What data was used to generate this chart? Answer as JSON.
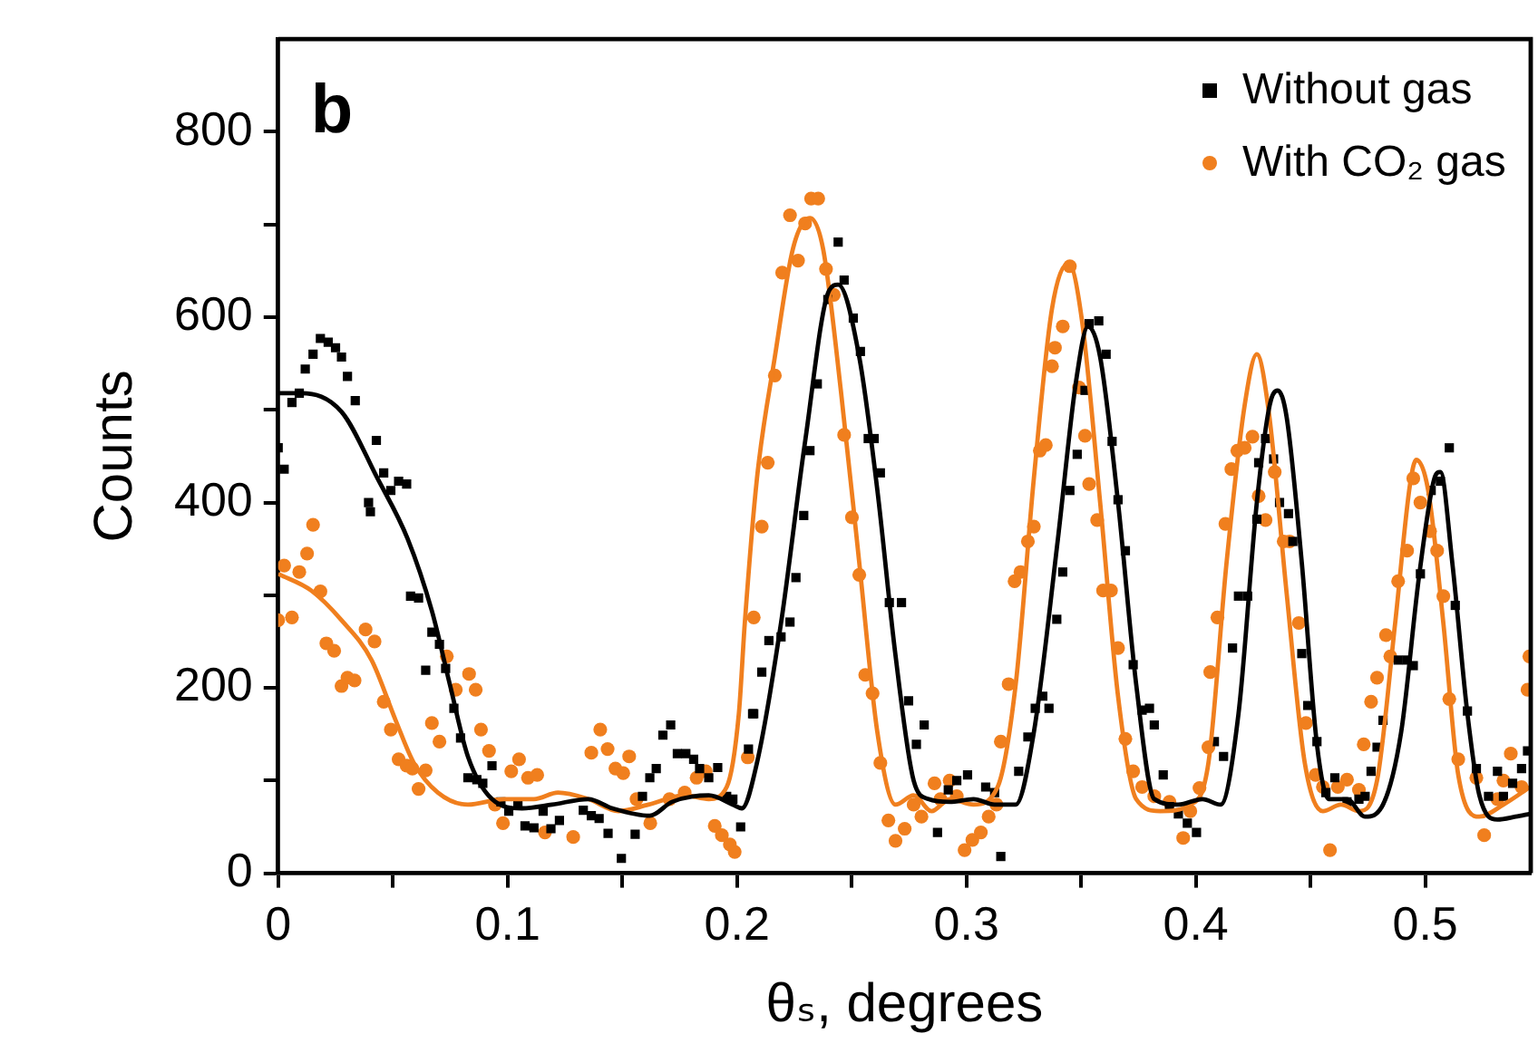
{
  "chart_data": {
    "type": "scatter",
    "xlabel": "θₛ, degrees",
    "ylabel": "Counts",
    "annotations": [
      "b"
    ],
    "xlim": [
      0,
      0.546
    ],
    "ylim": [
      0,
      900
    ],
    "xticks": [
      0,
      {
        "value": 0.05,
        "label": null
      },
      0.1,
      {
        "value": 0.15,
        "label": null
      },
      0.2,
      {
        "value": 0.25,
        "label": null
      },
      0.3,
      {
        "value": 0.35,
        "label": null
      },
      0.4,
      {
        "value": 0.45,
        "label": null
      },
      0.5
    ],
    "yticks": [
      0,
      {
        "value": 100,
        "label": null
      },
      200,
      {
        "value": 300,
        "label": null
      },
      400,
      {
        "value": 500,
        "label": null
      },
      600,
      {
        "value": 700,
        "label": null
      },
      800
    ],
    "grid": false,
    "legend": "top right",
    "line_style": "solid",
    "series": [
      {
        "name": "Without gas",
        "marker": "square",
        "color": "#000000",
        "x": [
          0,
          0.0026,
          0.006,
          0.0092,
          0.0118,
          0.0152,
          0.0184,
          0.0218,
          0.025,
          0.0276,
          0.0302,
          0.0336,
          0.0394,
          0.0402,
          0.0428,
          0.046,
          0.0491,
          0.0525,
          0.056,
          0.0577,
          0.0612,
          0.0643,
          0.067,
          0.0703,
          0.073,
          0.0766,
          0.0795,
          0.0827,
          0.0866,
          0.0892,
          0.0932,
          0.0971,
          0.1005,
          0.1045,
          0.1076,
          0.1115,
          0.1155,
          0.1189,
          0.1226,
          0.133,
          0.1365,
          0.1399,
          0.1438,
          0.1496,
          0.1556,
          0.1588,
          0.162,
          0.1648,
          0.1677,
          0.1711,
          0.174,
          0.1777,
          0.1811,
          0.1837,
          0.1877,
          0.1916,
          0.1955,
          0.1982,
          0.2016,
          0.205,
          0.2068,
          0.2073,
          0.2108,
          0.2139,
          0.2192,
          0.2231,
          0.2257,
          0.2291,
          0.2318,
          0.235,
          0.2396,
          0.2441,
          0.2467,
          0.2507,
          0.2538,
          0.2572,
          0.2598,
          0.2625,
          0.2664,
          0.2717,
          0.2748,
          0.2782,
          0.2816,
          0.2874,
          0.2921,
          0.2958,
          0.3005,
          0.3084,
          0.3123,
          0.315,
          0.3228,
          0.3268,
          0.33,
          0.3333,
          0.336,
          0.3394,
          0.342,
          0.3451,
          0.3483,
          0.3517,
          0.3535,
          0.3577,
          0.3609,
          0.3635,
          0.3661,
          0.3693,
          0.3727,
          0.3766,
          0.3798,
          0.3819,
          0.3858,
          0.3885,
          0.3924,
          0.3963,
          0.4003,
          0.4081,
          0.4121,
          0.416,
          0.4186,
          0.4226,
          0.4266,
          0.4274,
          0.4304,
          0.4339,
          0.4365,
          0.4404,
          0.4423,
          0.4462,
          0.4488,
          0.4528,
          0.4567,
          0.4606,
          0.4659,
          0.4711,
          0.4738,
          0.4764,
          0.479,
          0.4816,
          0.4882,
          0.4921,
          0.4948,
          0.4979,
          0.5026,
          0.5066,
          0.5105,
          0.5131,
          0.5184,
          0.5223,
          0.5276,
          0.5315,
          0.5341,
          0.5381,
          0.542,
          0.5446
        ],
        "values": [
          459,
          436,
          508,
          518,
          544,
          560,
          577,
          573,
          567,
          557,
          536,
          510,
          400,
          390,
          467,
          432,
          413,
          423,
          420,
          299,
          297,
          219,
          260,
          247,
          221,
          178,
          146,
          103,
          101,
          97,
          116,
          77,
          67,
          74,
          51,
          49,
          67,
          48,
          57,
          68,
          62,
          59,
          43,
          16,
          42,
          83,
          103,
          113,
          149,
          160,
          129,
          129,
          123,
          113,
          103,
          114,
          83,
          80,
          50,
          134,
          172,
          172,
          217,
          251,
          255,
          271,
          319,
          386,
          456,
          528,
          619,
          681,
          640,
          599,
          563,
          469,
          469,
          432,
          292,
          292,
          186,
          139,
          160,
          44,
          90,
          100,
          106,
          93,
          87,
          18,
          110,
          147,
          178,
          191,
          178,
          274,
          325,
          413,
          452,
          521,
          593,
          596,
          560,
          466,
          403,
          348,
          225,
          176,
          178,
          160,
          106,
          72,
          64,
          54,
          44,
          142,
          126,
          243,
          299,
          299,
          382,
          443,
          469,
          447,
          400,
          388,
          358,
          237,
          181,
          142,
          87,
          103,
          77,
          80,
          83,
          110,
          136,
          165,
          230,
          230,
          224,
          323,
          413,
          423,
          459,
          289,
          175,
          113,
          83,
          110,
          83,
          97,
          113,
          132
        ]
      },
      {
        "name": "With CO₂ gas",
        "marker": "circle",
        "color": "#f07f1e",
        "x": [
          0,
          0.0026,
          0.006,
          0.0092,
          0.0126,
          0.0152,
          0.0184,
          0.021,
          0.0244,
          0.0276,
          0.0302,
          0.0333,
          0.0381,
          0.042,
          0.046,
          0.0491,
          0.0525,
          0.056,
          0.0585,
          0.0612,
          0.0643,
          0.067,
          0.0703,
          0.0735,
          0.0774,
          0.0832,
          0.0861,
          0.0884,
          0.0919,
          0.0945,
          0.098,
          0.1016,
          0.105,
          0.1089,
          0.1129,
          0.1163,
          0.1286,
          0.1365,
          0.1404,
          0.1436,
          0.147,
          0.1504,
          0.153,
          0.1562,
          0.1622,
          0.1706,
          0.1772,
          0.1824,
          0.1864,
          0.1903,
          0.1934,
          0.1969,
          0.199,
          0.2047,
          0.2073,
          0.2108,
          0.2134,
          0.2165,
          0.2197,
          0.2231,
          0.2266,
          0.2297,
          0.2323,
          0.2354,
          0.2388,
          0.2422,
          0.2467,
          0.2501,
          0.2533,
          0.2559,
          0.2591,
          0.2625,
          0.266,
          0.2691,
          0.2731,
          0.277,
          0.2804,
          0.2861,
          0.2887,
          0.2927,
          0.2958,
          0.2992,
          0.3026,
          0.3063,
          0.3097,
          0.3131,
          0.315,
          0.3184,
          0.321,
          0.3236,
          0.3268,
          0.3294,
          0.332,
          0.3346,
          0.3373,
          0.3386,
          0.342,
          0.3451,
          0.3491,
          0.3517,
          0.3535,
          0.357,
          0.3596,
          0.363,
          0.3661,
          0.3693,
          0.3727,
          0.3766,
          0.3819,
          0.3885,
          0.3945,
          0.3976,
          0.4016,
          0.4055,
          0.4063,
          0.4094,
          0.4129,
          0.4155,
          0.4181,
          0.4213,
          0.4247,
          0.4274,
          0.4304,
          0.4344,
          0.4383,
          0.4409,
          0.4449,
          0.448,
          0.4522,
          0.4554,
          0.4585,
          0.4619,
          0.4659,
          0.4711,
          0.4732,
          0.4764,
          0.479,
          0.4829,
          0.4848,
          0.4882,
          0.4921,
          0.4948,
          0.4979,
          0.5021,
          0.5052,
          0.5079,
          0.5105,
          0.5144,
          0.5223,
          0.5257,
          0.5315,
          0.5341,
          0.5373,
          0.542,
          0.5446,
          0.5454
        ],
        "values": [
          273,
          332,
          276,
          325,
          345,
          376,
          304,
          248,
          240,
          202,
          211,
          208,
          263,
          250,
          185,
          155,
          123,
          116,
          113,
          91,
          111,
          162,
          142,
          234,
          198,
          215,
          198,
          155,
          132,
          74,
          54,
          110,
          123,
          103,
          106,
          44,
          39,
          130,
          155,
          134,
          113,
          108,
          126,
          80,
          54,
          80,
          87,
          103,
          110,
          51,
          41,
          31,
          23,
          125,
          276,
          374,
          443,
          537,
          648,
          710,
          661,
          701,
          728,
          728,
          652,
          624,
          473,
          384,
          322,
          214,
          194,
          119,
          57,
          35,
          48,
          74,
          61,
          97,
          80,
          100,
          83,
          25,
          36,
          44,
          61,
          74,
          142,
          204,
          315,
          325,
          358,
          374,
          456,
          462,
          547,
          567,
          590,
          655,
          524,
          472,
          420,
          381,
          305,
          305,
          243,
          145,
          110,
          93,
          83,
          77,
          38,
          67,
          92,
          136,
          217,
          276,
          377,
          436,
          456,
          459,
          471,
          407,
          381,
          433,
          358,
          358,
          270,
          162,
          106,
          93,
          25,
          93,
          101,
          90,
          139,
          185,
          211,
          257,
          234,
          315,
          348,
          426,
          400,
          369,
          348,
          299,
          188,
          123,
          103,
          41,
          80,
          100,
          129,
          93,
          198,
          234
        ]
      },
      {
        "type": "line",
        "marker": "none",
        "color": "#000000",
        "x": [
          0,
          0.01,
          0.0276,
          0.0433,
          0.0564,
          0.067,
          0.0748,
          0.0827,
          0.0932,
          0.1063,
          0.1194,
          0.1352,
          0.1457,
          0.162,
          0.1717,
          0.1877,
          0.1982,
          0.2021,
          0.2087,
          0.2192,
          0.2297,
          0.2402,
          0.2441,
          0.2533,
          0.2612,
          0.269,
          0.277,
          0.2835,
          0.2927,
          0.3031,
          0.3123,
          0.3215,
          0.3294,
          0.3399,
          0.3478,
          0.353,
          0.3583,
          0.3661,
          0.374,
          0.3819,
          0.3924,
          0.4029,
          0.4108,
          0.4186,
          0.4266,
          0.4322,
          0.4357,
          0.4396,
          0.4462,
          0.4528,
          0.458,
          0.4659,
          0.4738,
          0.4816,
          0.4895,
          0.4974,
          0.504,
          0.5066,
          0.5118,
          0.5184,
          0.5236,
          0.5315,
          0.5394,
          0.5457
        ],
        "values": [
          518,
          518,
          498,
          426,
          361,
          283,
          204,
          126,
          80,
          70,
          74,
          80,
          70,
          62,
          77,
          84,
          74,
          70,
          119,
          270,
          466,
          629,
          635,
          557,
          413,
          237,
          100,
          80,
          77,
          80,
          74,
          74,
          152,
          361,
          531,
          590,
          557,
          400,
          204,
          80,
          74,
          80,
          74,
          172,
          400,
          505,
          521,
          492,
          335,
          139,
          80,
          80,
          61,
          74,
          152,
          322,
          426,
          433,
          335,
          172,
          84,
          58,
          61,
          64
        ]
      },
      {
        "type": "line",
        "marker": "none",
        "color": "#f07f1e",
        "x": [
          0,
          0.0144,
          0.0276,
          0.0407,
          0.0512,
          0.0591,
          0.0696,
          0.0827,
          0.0984,
          0.1115,
          0.122,
          0.1352,
          0.1483,
          0.1614,
          0.1772,
          0.1877,
          0.1955,
          0.2008,
          0.2034,
          0.2087,
          0.2165,
          0.2244,
          0.2318,
          0.2375,
          0.2454,
          0.2533,
          0.2612,
          0.2691,
          0.277,
          0.2848,
          0.2927,
          0.3031,
          0.3136,
          0.3215,
          0.3294,
          0.3373,
          0.3446,
          0.3504,
          0.3583,
          0.3661,
          0.374,
          0.3845,
          0.3976,
          0.4055,
          0.4134,
          0.4213,
          0.4266,
          0.4318,
          0.4396,
          0.4475,
          0.4554,
          0.4633,
          0.4711,
          0.479,
          0.4869,
          0.4934,
          0.4961,
          0.5013,
          0.5079,
          0.5144,
          0.5236,
          0.5341,
          0.5457
        ],
        "values": [
          323,
          305,
          273,
          230,
          165,
          119,
          87,
          74,
          80,
          80,
          87,
          80,
          67,
          74,
          84,
          80,
          93,
          172,
          270,
          426,
          557,
          674,
          707,
          674,
          518,
          335,
          152,
          74,
          84,
          67,
          80,
          74,
          93,
          204,
          426,
          609,
          658,
          596,
          400,
          191,
          80,
          67,
          74,
          119,
          335,
          505,
          560,
          498,
          302,
          119,
          67,
          74,
          67,
          100,
          270,
          420,
          446,
          413,
          270,
          106,
          61,
          74,
          93
        ]
      }
    ]
  }
}
